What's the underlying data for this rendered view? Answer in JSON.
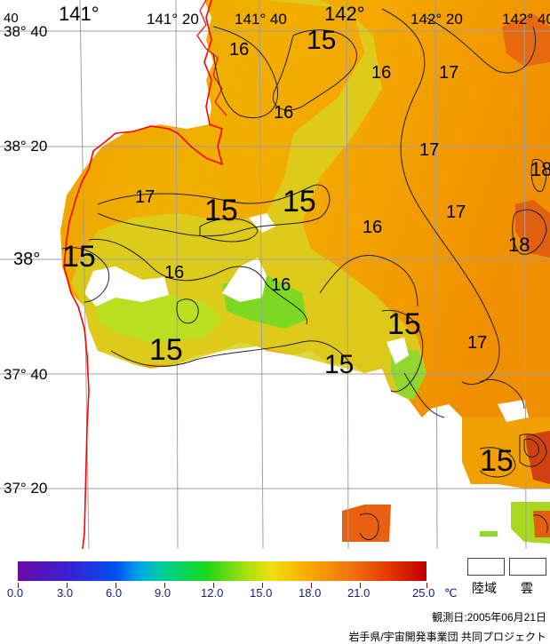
{
  "map": {
    "lat_labels": [
      "38° 40",
      "38° 20",
      "38°",
      "37° 40",
      "37° 20"
    ],
    "lon_labels": [
      "141°",
      "141° 20",
      "141° 40",
      "142°",
      "142° 20",
      "142° 40"
    ],
    "corner_label": "40",
    "contour_labels": [
      "15",
      "15",
      "15",
      "15",
      "15",
      "15",
      "15",
      "16",
      "16",
      "16",
      "16",
      "16",
      "16",
      "17",
      "17",
      "17",
      "17",
      "17",
      "18",
      "18"
    ]
  },
  "legend": {
    "ticks": [
      "0.0",
      "3.0",
      "6.0",
      "9.0",
      "12.0",
      "15.0",
      "18.0",
      "21.0",
      "25.0"
    ],
    "unit": "℃",
    "land_label": "陸域",
    "cloud_label": "雲",
    "observation_date": "観測日:2005年06月21日",
    "credit": "岩手県/宇宙開発事業団 共同プロジェクト",
    "colors": {
      "land": "#ffffff",
      "cloud": "#ffffff",
      "coast": "#ff0000",
      "grid": "#a0a0a0"
    }
  }
}
